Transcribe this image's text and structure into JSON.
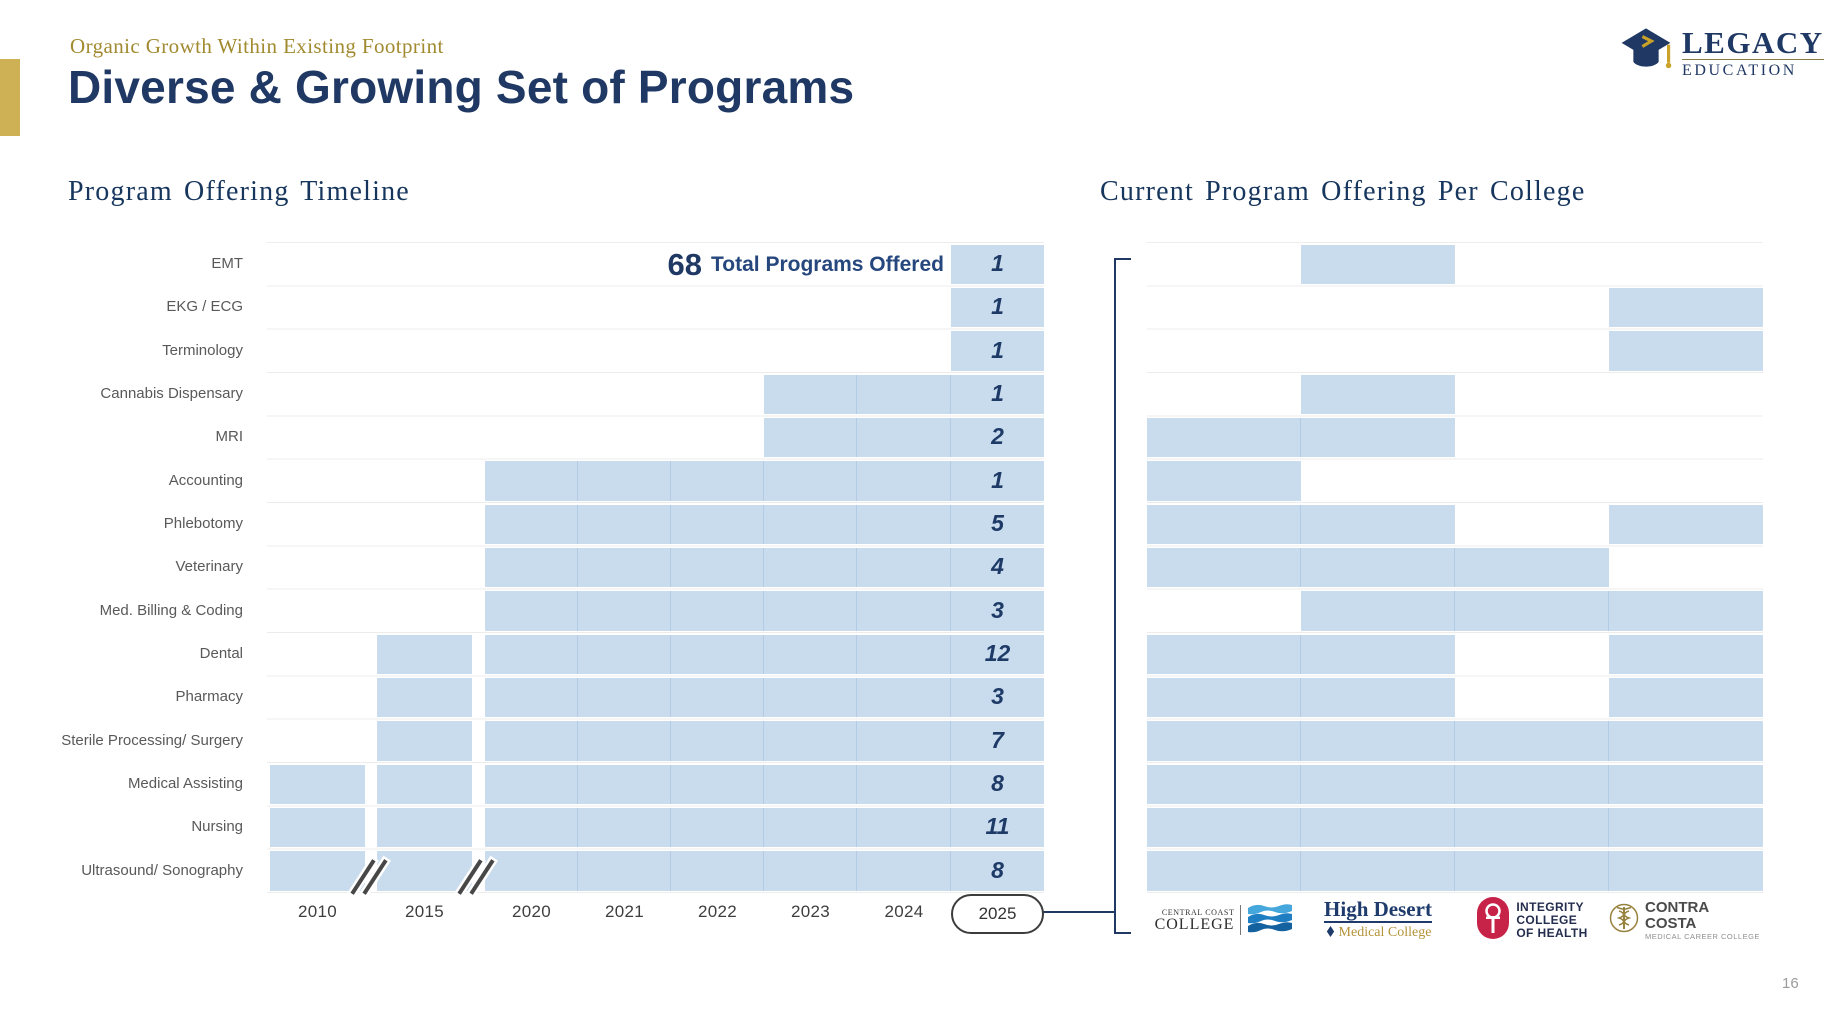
{
  "slide": {
    "eyebrow": "Organic Growth Within Existing Footprint",
    "title": "Diverse & Growing Set of Programs",
    "page_number": "16"
  },
  "brand": {
    "name_top": "LEGACY",
    "name_bottom": "EDUCATION",
    "accent_gold": "#C9A227",
    "navy": "#1F3864"
  },
  "left_panel": {
    "title": "Program Offering Timeline"
  },
  "right_panel": {
    "title": "Current Program Offering Per College",
    "colleges": [
      {
        "line1": "CENTRAL COAST",
        "line2": "COLLEGE"
      },
      {
        "line1": "High Desert",
        "line2": "Medical College"
      },
      {
        "line1": "INTEGRITY",
        "line2": "COLLEGE",
        "line3": "OF HEALTH"
      },
      {
        "line1": "CONTRA COSTA",
        "line2": "MEDICAL CAREER COLLEGE"
      }
    ]
  },
  "chart_data": [
    {
      "type": "bar",
      "subtype": "timeline-gantt",
      "title": "Program Offering Timeline",
      "x_ticks": [
        "2010",
        "2015",
        "2020",
        "2021",
        "2022",
        "2023",
        "2024",
        "2025"
      ],
      "axis_breaks": [
        [
          "2010",
          "2015"
        ],
        [
          "2015",
          "2020"
        ]
      ],
      "highlighted_tick": "2025",
      "annotation": {
        "value": "68",
        "label": "Total Programs Offered"
      },
      "bar_color": "#C9DCEE",
      "categories": [
        "EMT",
        "EKG / ECG",
        "Terminology",
        "Cannabis Dispensary",
        "MRI",
        "Accounting",
        "Phlebotomy",
        "Veterinary",
        "Med. Billing & Coding",
        "Dental",
        "Pharmacy",
        "Sterile Processing/ Surgery",
        "Medical Assisting",
        "Nursing",
        "Ultrasound/ Sonography"
      ],
      "series": [
        {
          "name": "first_offered_year",
          "values": [
            "2025",
            "2025",
            "2025",
            "2023",
            "2023",
            "2020",
            "2020",
            "2020",
            "2020",
            "2015",
            "2015",
            "2015",
            "2010",
            "2010",
            "2010"
          ]
        },
        {
          "name": "programs_offered_2025",
          "values": [
            1,
            1,
            1,
            1,
            2,
            1,
            5,
            4,
            3,
            12,
            3,
            7,
            8,
            11,
            8
          ]
        }
      ],
      "total_programs": 68
    },
    {
      "type": "heatmap",
      "title": "Current Program Offering Per College",
      "rows": [
        "EMT",
        "EKG / ECG",
        "Terminology",
        "Cannabis Dispensary",
        "MRI",
        "Accounting",
        "Phlebotomy",
        "Veterinary",
        "Med. Billing & Coding",
        "Dental",
        "Pharmacy",
        "Sterile Processing/ Surgery",
        "Medical Assisting",
        "Nursing",
        "Ultrasound/ Sonography"
      ],
      "columns": [
        "Central Coast College",
        "High Desert Medical College",
        "Integrity College of Health",
        "Contra Costa Medical Career College"
      ],
      "values": [
        [
          0,
          1,
          0,
          0
        ],
        [
          0,
          0,
          0,
          1
        ],
        [
          0,
          0,
          0,
          1
        ],
        [
          0,
          1,
          0,
          0
        ],
        [
          1,
          1,
          0,
          0
        ],
        [
          1,
          0,
          0,
          0
        ],
        [
          1,
          1,
          0,
          1
        ],
        [
          1,
          1,
          1,
          0
        ],
        [
          0,
          1,
          1,
          1
        ],
        [
          1,
          1,
          0,
          1
        ],
        [
          1,
          1,
          0,
          1
        ],
        [
          1,
          1,
          1,
          1
        ],
        [
          1,
          1,
          1,
          1
        ],
        [
          1,
          1,
          1,
          1
        ],
        [
          1,
          1,
          1,
          1
        ]
      ],
      "cell_color": "#C9DCEE"
    }
  ]
}
